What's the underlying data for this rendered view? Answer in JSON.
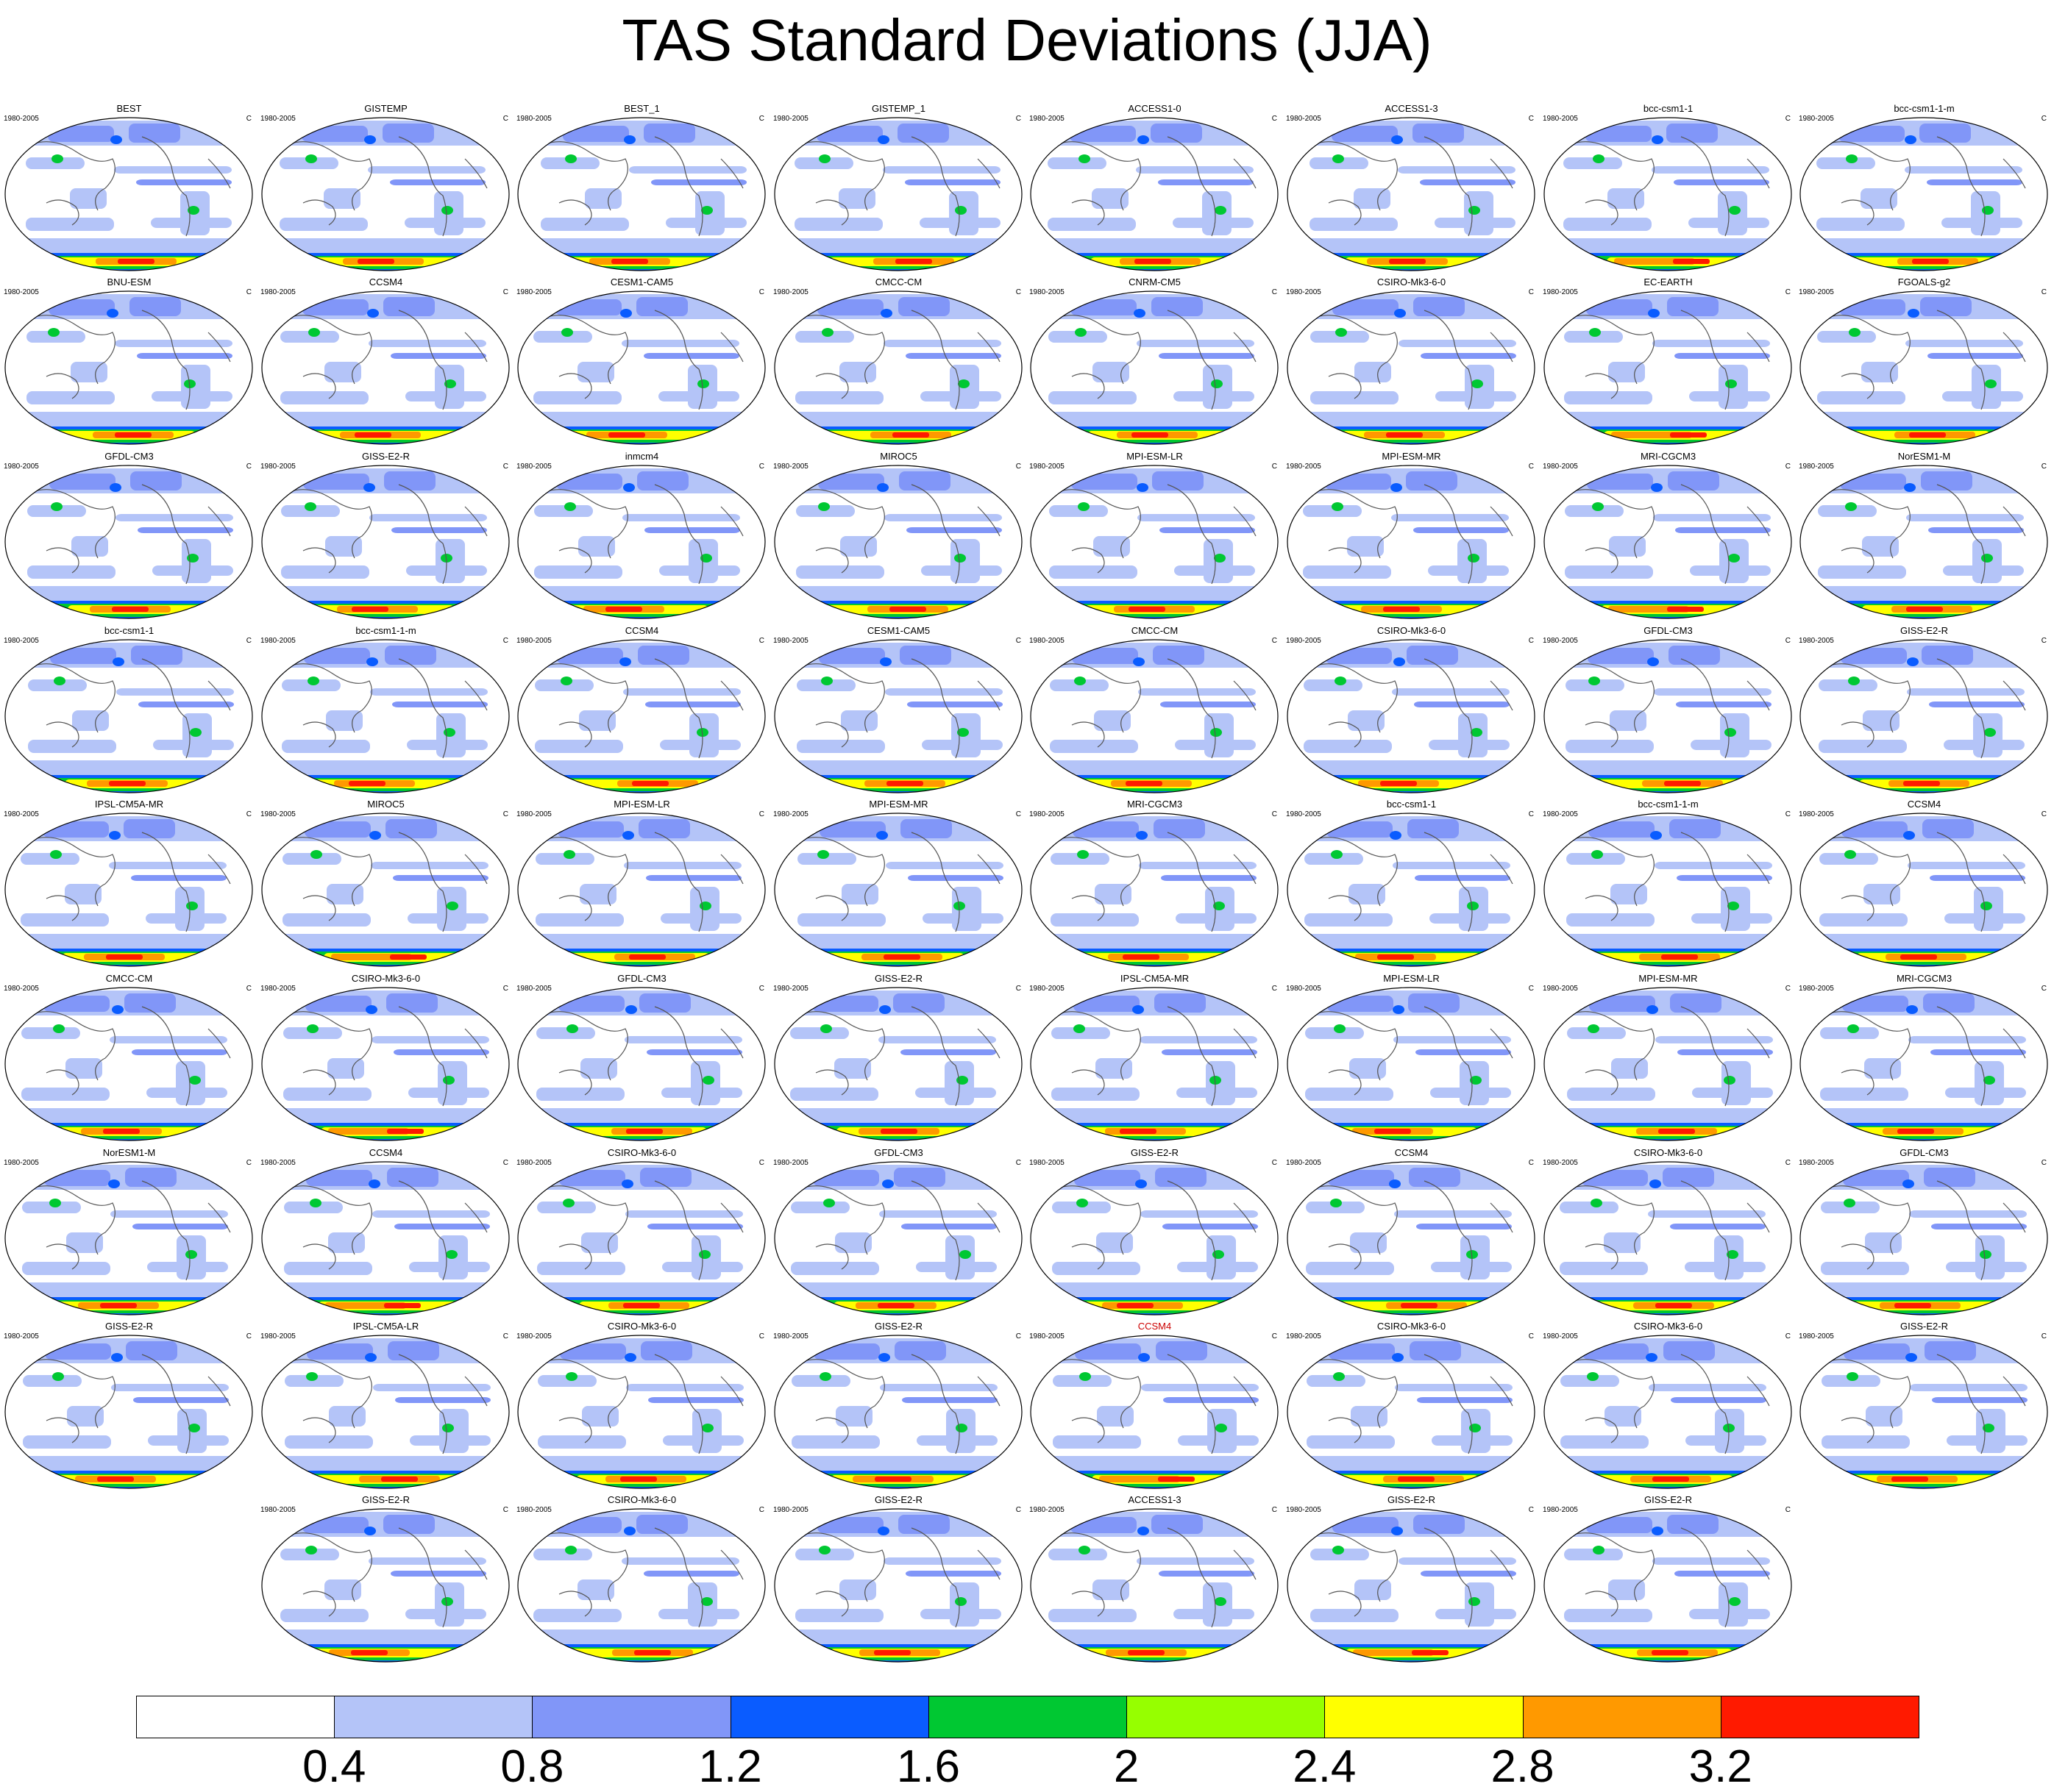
{
  "title": "TAS Standard Deviations (JJA)",
  "panel_period": "1980-2005",
  "panel_units": "C",
  "panels": [
    [
      "BEST",
      "GISTEMP",
      "BEST_1",
      "GISTEMP_1",
      "ACCESS1-0",
      "ACCESS1-3",
      "bcc-csm1-1",
      "bcc-csm1-1-m"
    ],
    [
      "BNU-ESM",
      "CCSM4",
      "CESM1-CAM5",
      "CMCC-CM",
      "CNRM-CM5",
      "CSIRO-Mk3-6-0",
      "EC-EARTH",
      "FGOALS-g2"
    ],
    [
      "GFDL-CM3",
      "GISS-E2-R",
      "inmcm4",
      "MIROC5",
      "MPI-ESM-LR",
      "MPI-ESM-MR",
      "MRI-CGCM3",
      "NorESM1-M"
    ],
    [
      "bcc-csm1-1",
      "bcc-csm1-1-m",
      "CCSM4",
      "CESM1-CAM5",
      "CMCC-CM",
      "CSIRO-Mk3-6-0",
      "GFDL-CM3",
      "GISS-E2-R"
    ],
    [
      "IPSL-CM5A-MR",
      "MIROC5",
      "MPI-ESM-LR",
      "MPI-ESM-MR",
      "MRI-CGCM3",
      "bcc-csm1-1",
      "bcc-csm1-1-m",
      "CCSM4"
    ],
    [
      "CMCC-CM",
      "CSIRO-Mk3-6-0",
      "GFDL-CM3",
      "GISS-E2-R",
      "IPSL-CM5A-MR",
      "MPI-ESM-LR",
      "MPI-ESM-MR",
      "MRI-CGCM3"
    ],
    [
      "NorESM1-M",
      "CCSM4",
      "CSIRO-Mk3-6-0",
      "GFDL-CM3",
      "GISS-E2-R",
      "CCSM4",
      "CSIRO-Mk3-6-0",
      "GFDL-CM3"
    ],
    [
      "GISS-E2-R",
      "IPSL-CM5A-LR",
      "CSIRO-Mk3-6-0",
      "GISS-E2-R",
      "CCSM4",
      "CSIRO-Mk3-6-0",
      "CSIRO-Mk3-6-0",
      "GISS-E2-R"
    ],
    [
      "GISS-E2-R",
      "CSIRO-Mk3-6-0",
      "GISS-E2-R",
      "ACCESS1-3",
      "GISS-E2-R",
      "GISS-E2-R"
    ]
  ],
  "highlight_panel": {
    "row": 7,
    "col": 4,
    "color": "#cc0000"
  },
  "chart_data": {
    "type": "heatmap",
    "title": "TAS Standard Deviations (JJA)",
    "colorbar": {
      "levels": [
        "0.4",
        "0.8",
        "1.2",
        "1.6",
        "2",
        "2.4",
        "2.8",
        "3.2"
      ],
      "colors": [
        "#ffffff",
        "#b4c4f8",
        "#8196f8",
        "#0a5cff",
        "#00c832",
        "#96ff00",
        "#ffff00",
        "#ff9900",
        "#ff1a00"
      ]
    }
  }
}
